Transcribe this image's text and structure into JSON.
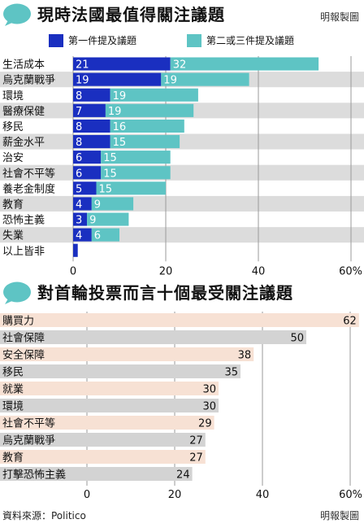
{
  "top": {
    "title": "現時法國最值得關注議題",
    "credit": "明報製圖",
    "legend": [
      {
        "label": "第一件提及議題",
        "color": "#1a2fc0"
      },
      {
        "label": "第二或三件提及議題",
        "color": "#5ec4c4"
      }
    ]
  },
  "bottom": {
    "title": "對首輪投票而言十個最受關注議題",
    "source": "資料來源：Politico",
    "credit": "明報製圖"
  },
  "colors": {
    "primary": "#1a2fc0",
    "secondary": "#5ec4c4",
    "row_alt": "#dcdcdc",
    "bar_peach": "#f7e1d4",
    "bar_grey": "#d3d3d3",
    "bubble": "#5ec4c4"
  },
  "chart_data": [
    {
      "type": "bar",
      "orientation": "horizontal",
      "stacked": true,
      "title": "現時法國最值得關注議題",
      "categories": [
        "生活成本",
        "烏克蘭戰爭",
        "環境",
        "醫療保健",
        "移民",
        "薪金水平",
        "治安",
        "社會不平等",
        "養老金制度",
        "教育",
        "恐怖主義",
        "失業",
        "以上皆非"
      ],
      "series": [
        {
          "name": "第一件提及議題",
          "values": [
            21,
            19,
            8,
            7,
            8,
            8,
            6,
            6,
            5,
            4,
            3,
            4,
            1
          ],
          "labels": [
            "21",
            "19",
            "8",
            "7",
            "8",
            "8",
            "6",
            "6",
            "5",
            "4",
            "3",
            "4",
            ""
          ]
        },
        {
          "name": "第二或三件提及議題",
          "values": [
            32,
            19,
            19,
            19,
            16,
            15,
            15,
            15,
            15,
            9,
            9,
            6,
            0
          ],
          "labels": [
            "32",
            "19",
            "19",
            "19",
            "16",
            "15",
            "15",
            "15",
            "15",
            "9",
            "9",
            "6",
            ""
          ]
        }
      ],
      "xlim": [
        0,
        60
      ],
      "ticks": [
        "0",
        "20",
        "40",
        "60%"
      ]
    },
    {
      "type": "bar",
      "orientation": "horizontal",
      "title": "對首輪投票而言十個最受關注議題",
      "categories": [
        "購買力",
        "社會保障",
        "安全保障",
        "移民",
        "就業",
        "環境",
        "社會不平等",
        "烏克蘭戰爭",
        "教育",
        "打擊恐怖主義"
      ],
      "values": [
        62,
        50,
        38,
        35,
        30,
        30,
        29,
        27,
        27,
        24
      ],
      "xlim": [
        0,
        60
      ],
      "ticks": [
        "0",
        "20",
        "40",
        "60%"
      ]
    }
  ]
}
